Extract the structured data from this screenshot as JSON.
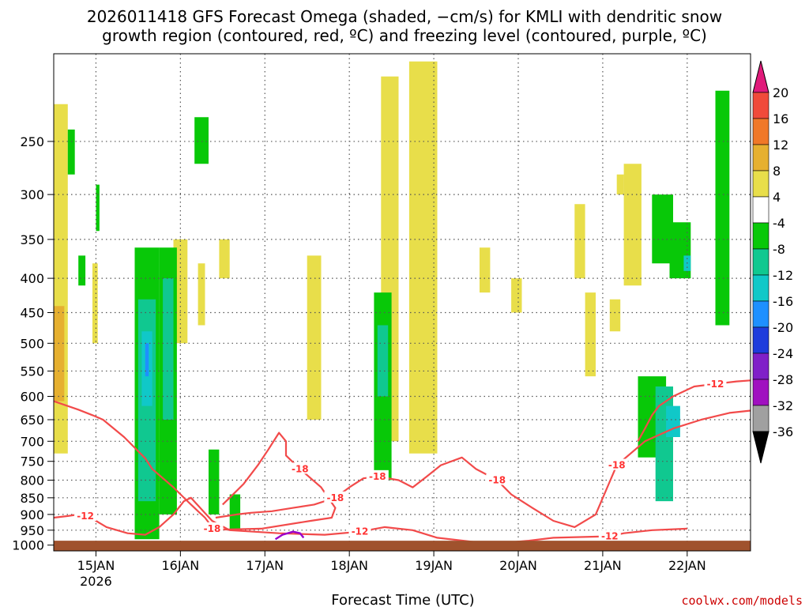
{
  "title": {
    "line1": "2026011418 GFS Forecast Omega (shaded, −cm/s) for KMLI with dendritic snow",
    "line2": "growth region (contoured, red, ºC) and freezing level (contoured, purple, ºC)"
  },
  "credit": "coolwx.com/models",
  "colors": {
    "dendritic_contour": "#f24a4a",
    "freezing_contour": "#9900cc",
    "terrain": "#a0522d",
    "grid": "#555555"
  },
  "chart_data": {
    "type": "heatmap",
    "title": "2026011418 GFS Forecast Omega (shaded, −cm/s) for KMLI with dendritic snow growth region (contoured, red, ºC) and freezing level (contoured, purple, ºC)",
    "xlabel": "Forecast Time (UTC)",
    "ylabel": "",
    "x_ticks": [
      "15JAN",
      "16JAN",
      "17JAN",
      "18JAN",
      "19JAN",
      "20JAN",
      "21JAN",
      "22JAN"
    ],
    "x_tick_sublabel": "2026",
    "x_range_hours": [
      -12,
      186
    ],
    "y_ticks": [
      250,
      300,
      350,
      400,
      450,
      500,
      550,
      600,
      650,
      700,
      750,
      800,
      850,
      900,
      950,
      1000
    ],
    "y_range_hPa": [
      185,
      1020
    ],
    "y_scale": "log",
    "grid": true,
    "colorbar": {
      "labels": [
        "20",
        "16",
        "12",
        "8",
        "4",
        "-4",
        "-8",
        "-12",
        "-16",
        "-20",
        "-24",
        "-28",
        "-32",
        "-36"
      ],
      "colors": [
        "#e01a7a",
        "#f04a3a",
        "#f07828",
        "#e6b030",
        "#e8de4a",
        "#ffffff",
        "#08c808",
        "#10c890",
        "#10c8c8",
        "#1e90ff",
        "#1e3cdc",
        "#8020c8",
        "#a010c0",
        "#a0a0a0",
        "#000000"
      ]
    },
    "shaded_regions": [
      {
        "level": "4",
        "x": [
          -12,
          -8,
          -8,
          -12
        ],
        "y": [
          220,
          220,
          730,
          730
        ]
      },
      {
        "level": "8",
        "x": [
          -12,
          -9,
          -9,
          -12
        ],
        "y": [
          440,
          440,
          610,
          610
        ]
      },
      {
        "level": "4",
        "x": [
          -1,
          0.5,
          0.5,
          -1
        ],
        "y": [
          380,
          380,
          500,
          500
        ]
      },
      {
        "level": "4",
        "x": [
          22,
          26,
          26,
          22
        ],
        "y": [
          350,
          350,
          500,
          500
        ]
      },
      {
        "level": "-4",
        "x": [
          -8,
          -6,
          -6,
          -8
        ],
        "y": [
          240,
          240,
          280,
          280
        ]
      },
      {
        "level": "-4",
        "x": [
          -5,
          -3,
          -3,
          -5
        ],
        "y": [
          370,
          370,
          410,
          410
        ]
      },
      {
        "level": "-4",
        "x": [
          0,
          1,
          1,
          0
        ],
        "y": [
          290,
          290,
          340,
          340
        ]
      },
      {
        "level": "-4",
        "x": [
          11,
          18,
          18,
          11
        ],
        "y": [
          360,
          360,
          980,
          980
        ]
      },
      {
        "level": "-8",
        "x": [
          12,
          17,
          17,
          12
        ],
        "y": [
          430,
          430,
          860,
          860
        ]
      },
      {
        "level": "-12",
        "x": [
          13,
          16,
          16,
          13
        ],
        "y": [
          480,
          480,
          620,
          620
        ]
      },
      {
        "level": "-16",
        "x": [
          14,
          15,
          15,
          14
        ],
        "y": [
          500,
          500,
          560,
          560
        ]
      },
      {
        "level": "-4",
        "x": [
          18,
          23,
          23,
          18
        ],
        "y": [
          360,
          360,
          900,
          900
        ]
      },
      {
        "level": "-8",
        "x": [
          19,
          22,
          22,
          19
        ],
        "y": [
          400,
          400,
          650,
          650
        ]
      },
      {
        "level": "-4",
        "x": [
          28,
          32,
          32,
          28
        ],
        "y": [
          230,
          230,
          270,
          270
        ]
      },
      {
        "level": "-4",
        "x": [
          32,
          35,
          35,
          32
        ],
        "y": [
          720,
          720,
          900,
          900
        ]
      },
      {
        "level": "-4",
        "x": [
          38,
          41,
          41,
          38
        ],
        "y": [
          840,
          840,
          950,
          950
        ]
      },
      {
        "level": "4",
        "x": [
          35,
          38,
          38,
          35
        ],
        "y": [
          350,
          350,
          400,
          400
        ]
      },
      {
        "level": "4",
        "x": [
          29,
          31,
          31,
          29
        ],
        "y": [
          380,
          380,
          470,
          470
        ]
      },
      {
        "level": "4",
        "x": [
          60,
          64,
          64,
          60
        ],
        "y": [
          370,
          370,
          650,
          650
        ]
      },
      {
        "level": "4",
        "x": [
          81,
          86,
          86,
          81
        ],
        "y": [
          200,
          200,
          700,
          700
        ]
      },
      {
        "level": "4",
        "x": [
          89,
          97,
          97,
          89
        ],
        "y": [
          190,
          190,
          730,
          730
        ]
      },
      {
        "level": "-4",
        "x": [
          79,
          84,
          84,
          79
        ],
        "y": [
          420,
          420,
          800,
          800
        ]
      },
      {
        "level": "-8",
        "x": [
          80,
          83,
          83,
          80
        ],
        "y": [
          470,
          470,
          600,
          600
        ]
      },
      {
        "level": "4",
        "x": [
          109,
          112,
          112,
          109
        ],
        "y": [
          360,
          360,
          420,
          420
        ]
      },
      {
        "level": "4",
        "x": [
          118,
          121,
          121,
          118
        ],
        "y": [
          400,
          400,
          450,
          450
        ]
      },
      {
        "level": "4",
        "x": [
          136,
          139,
          139,
          136
        ],
        "y": [
          310,
          310,
          400,
          400
        ]
      },
      {
        "level": "4",
        "x": [
          139,
          142,
          142,
          139
        ],
        "y": [
          420,
          420,
          560,
          560
        ]
      },
      {
        "level": "4",
        "x": [
          148,
          150,
          150,
          148
        ],
        "y": [
          280,
          280,
          300,
          300
        ]
      },
      {
        "level": "4",
        "x": [
          150,
          155,
          155,
          150
        ],
        "y": [
          270,
          270,
          410,
          410
        ]
      },
      {
        "level": "4",
        "x": [
          146,
          149,
          149,
          146
        ],
        "y": [
          430,
          430,
          480,
          480
        ]
      },
      {
        "level": "-4",
        "x": [
          154,
          162,
          162,
          154
        ],
        "y": [
          560,
          560,
          740,
          740
        ]
      },
      {
        "level": "-8",
        "x": [
          159,
          164,
          164,
          159
        ],
        "y": [
          580,
          580,
          860,
          860
        ]
      },
      {
        "level": "-12",
        "x": [
          162,
          166,
          166,
          162
        ],
        "y": [
          620,
          620,
          690,
          690
        ]
      },
      {
        "level": "-4",
        "x": [
          158,
          164,
          164,
          158
        ],
        "y": [
          300,
          300,
          380,
          380
        ]
      },
      {
        "level": "-4",
        "x": [
          163,
          169,
          169,
          163
        ],
        "y": [
          330,
          330,
          400,
          400
        ]
      },
      {
        "level": "-12",
        "x": [
          167,
          169,
          169,
          167
        ],
        "y": [
          370,
          370,
          390,
          390
        ]
      },
      {
        "level": "-4",
        "x": [
          176,
          180,
          180,
          176
        ],
        "y": [
          210,
          210,
          470,
          470
        ]
      }
    ],
    "dendritic_contours": [
      {
        "label": "-18",
        "x": [
          -12,
          -5,
          -1,
          2,
          8,
          14,
          16,
          22,
          26,
          29,
          31,
          32,
          33,
          37,
          47,
          61,
          67,
          68,
          66,
          64,
          58,
          54,
          54,
          52,
          49,
          46,
          42,
          38,
          36
        ],
        "y": [
          610,
          628,
          640,
          650,
          690,
          742,
          770,
          820,
          860,
          890,
          910,
          925,
          945,
          948,
          945,
          920,
          910,
          880,
          850,
          820,
          770,
          735,
          700,
          680,
          720,
          760,
          810,
          850,
          870
        ]
      },
      {
        "label": "-12",
        "x": [
          -12,
          -8,
          -5,
          -3,
          -1,
          0,
          3,
          9,
          14,
          18,
          22,
          25,
          27,
          33,
          38,
          52,
          65,
          75,
          82,
          90,
          97,
          108,
          118,
          123,
          130,
          146,
          150,
          158,
          168
        ],
        "y": [
          910,
          905,
          900,
          905,
          910,
          920,
          940,
          960,
          965,
          940,
          900,
          860,
          850,
          920,
          950,
          960,
          965,
          955,
          940,
          950,
          975,
          990,
          990,
          985,
          975,
          970,
          960,
          950,
          945
        ]
      },
      {
        "label": "-18",
        "x": [
          34,
          40,
          44,
          50,
          56,
          62,
          68,
          72,
          76,
          80,
          86,
          90,
          94,
          98,
          104,
          108,
          114,
          118,
          124,
          130,
          136,
          142,
          148,
          156,
          164,
          172,
          180,
          186
        ],
        "y": [
          910,
          900,
          895,
          890,
          880,
          870,
          850,
          820,
          795,
          790,
          800,
          820,
          790,
          760,
          740,
          770,
          800,
          840,
          880,
          920,
          940,
          900,
          760,
          700,
          670,
          650,
          635,
          630
        ]
      },
      {
        "label": "-12",
        "x": [
          154,
          156,
          158,
          160,
          164,
          170,
          176,
          182,
          186
        ],
        "y": [
          700,
          670,
          640,
          620,
          600,
          580,
          575,
          570,
          568
        ]
      }
    ],
    "freezing_contours": [
      {
        "label": "0",
        "x": [
          51,
          53,
          56,
          58,
          59
        ],
        "y": [
          980,
          965,
          955,
          960,
          975
        ]
      }
    ],
    "contour_labels": [
      "-18",
      "-12",
      "-18",
      "-18",
      "-12",
      "-18",
      "-18",
      "-12",
      "-18",
      "-12"
    ]
  }
}
